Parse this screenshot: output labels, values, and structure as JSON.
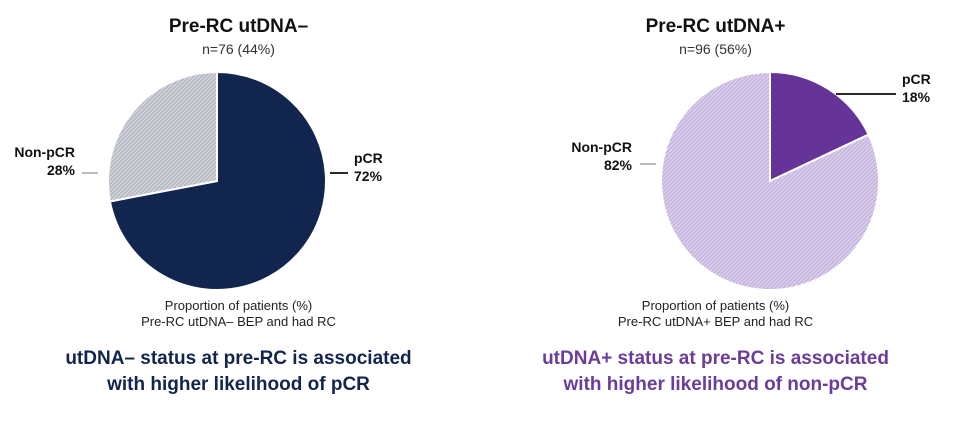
{
  "chart_data": [
    {
      "type": "pie",
      "title": "Pre-RC utDNA–",
      "subtitle": "n=76 (44%)",
      "slices": [
        {
          "name": "pCR",
          "value": 72,
          "label": "72%",
          "color": "#12254f"
        },
        {
          "name": "Non-pCR",
          "value": 28,
          "label": "28%",
          "color": "#b9bcc6"
        }
      ],
      "caption": [
        "Proportion of patients (%)",
        "Pre-RC utDNA– BEP and had RC"
      ],
      "conclusion": [
        "utDNA– status at pre-RC is associated",
        "with higher likelihood of pCR"
      ],
      "conclusion_color": "#12254f"
    },
    {
      "type": "pie",
      "title": "Pre-RC utDNA+",
      "subtitle": "n=96 (56%)",
      "slices": [
        {
          "name": "pCR",
          "value": 18,
          "label": "18%",
          "color": "#663399"
        },
        {
          "name": "Non-pCR",
          "value": 82,
          "label": "82%",
          "color": "#c7b7e0"
        }
      ],
      "caption": [
        "Proportion of patients (%)",
        "Pre-RC utDNA+ BEP and had RC"
      ],
      "conclusion": [
        "utDNA+ status at pre-RC is associated",
        "with higher likelihood of non-pCR"
      ],
      "conclusion_color": "#6a3d9a"
    }
  ]
}
